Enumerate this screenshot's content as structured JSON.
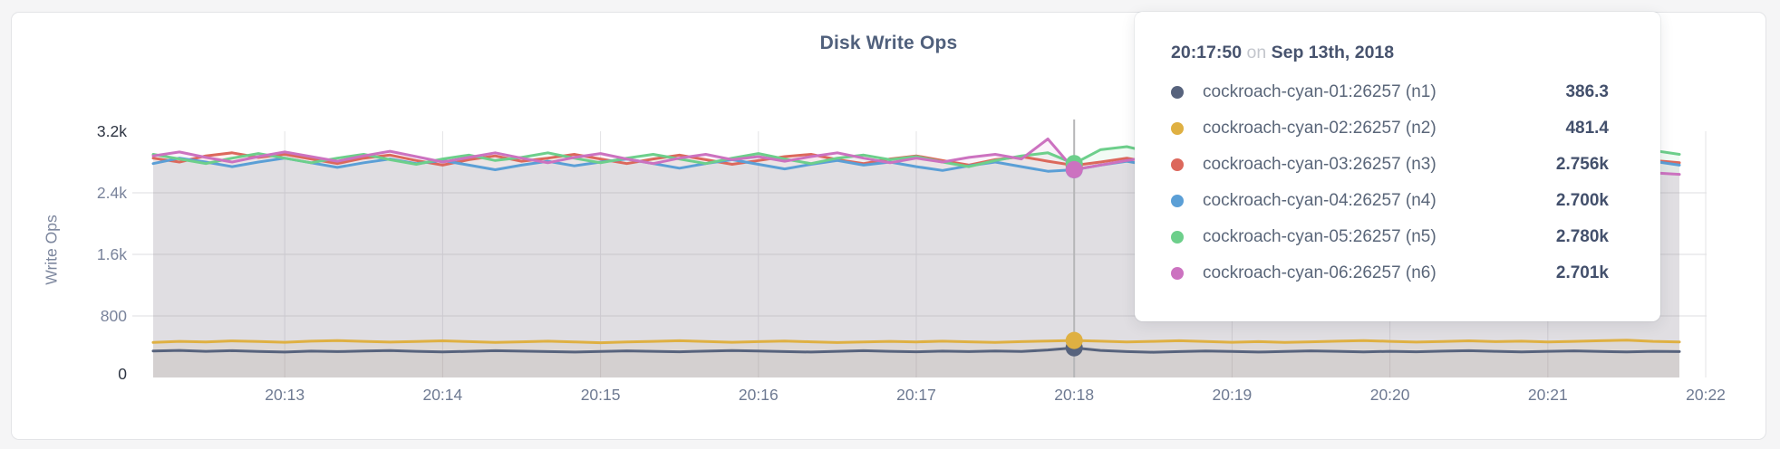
{
  "page": {
    "background": "#f5f5f6",
    "card_background": "#ffffff"
  },
  "chart_data": {
    "type": "area",
    "title": "Disk Write Ops",
    "ylabel": "Write Ops",
    "xlabel": "",
    "ylim": [
      0,
      3200
    ],
    "grid": true,
    "legend_position": "tooltip",
    "x_start_time": "20:12:10",
    "x_step_seconds": 10,
    "x_ticks": [
      {
        "label": "20:13",
        "t": 50
      },
      {
        "label": "20:14",
        "t": 110
      },
      {
        "label": "20:15",
        "t": 170
      },
      {
        "label": "20:16",
        "t": 230
      },
      {
        "label": "20:17",
        "t": 290
      },
      {
        "label": "20:18",
        "t": 350
      },
      {
        "label": "20:19",
        "t": 410
      },
      {
        "label": "20:20",
        "t": 470
      },
      {
        "label": "20:21",
        "t": 530
      },
      {
        "label": "20:22",
        "t": 590
      }
    ],
    "y_ticks": [
      {
        "label": "3.2k",
        "value": 3200,
        "emphasis": true
      },
      {
        "label": "2.4k",
        "value": 2400,
        "emphasis": false
      },
      {
        "label": "1.6k",
        "value": 1600,
        "emphasis": false
      },
      {
        "label": "800",
        "value": 800,
        "emphasis": false
      },
      {
        "label": "0",
        "value": 0,
        "emphasis": true
      }
    ],
    "hover": {
      "index": 35,
      "time": "20:17:50",
      "on_word": "on",
      "date": "Sep 13th, 2018"
    },
    "series": [
      {
        "name": "cockroach-cyan-01:26257 (n1)",
        "color": "#57637d",
        "tooltip_value": "386.3",
        "values": [
          345,
          352,
          340,
          348,
          338,
          330,
          342,
          336,
          344,
          350,
          340,
          332,
          340,
          348,
          342,
          336,
          330,
          338,
          346,
          340,
          334,
          342,
          350,
          344,
          336,
          330,
          340,
          348,
          340,
          334,
          342,
          336,
          344,
          338,
          358,
          386,
          352,
          336,
          328,
          336,
          344,
          338,
          330,
          338,
          346,
          340,
          332,
          340,
          334,
          342,
          348,
          340,
          332,
          340,
          346,
          338,
          332,
          340,
          336
        ]
      },
      {
        "name": "cockroach-cyan-02:26257 (n2)",
        "color": "#dfb042",
        "tooltip_value": "481.4",
        "values": [
          455,
          470,
          462,
          475,
          468,
          458,
          472,
          480,
          470,
          460,
          468,
          476,
          466,
          456,
          464,
          472,
          462,
          452,
          462,
          470,
          478,
          468,
          458,
          466,
          474,
          464,
          454,
          462,
          470,
          462,
          472,
          464,
          456,
          466,
          474,
          481,
          472,
          462,
          470,
          478,
          468,
          458,
          466,
          456,
          464,
          472,
          480,
          470,
          460,
          468,
          476,
          466,
          472,
          462,
          470,
          478,
          486,
          470,
          462
        ]
      },
      {
        "name": "cockroach-cyan-03:26257 (n3)",
        "color": "#dc685c",
        "tooltip_value": "2.756k",
        "values": [
          2850,
          2800,
          2880,
          2920,
          2860,
          2900,
          2840,
          2780,
          2850,
          2890,
          2820,
          2760,
          2830,
          2880,
          2810,
          2850,
          2900,
          2840,
          2780,
          2840,
          2890,
          2830,
          2770,
          2820,
          2870,
          2900,
          2830,
          2780,
          2840,
          2880,
          2820,
          2760,
          2830,
          2870,
          2810,
          2756,
          2800,
          2850,
          2790,
          2830,
          2870,
          2810,
          2760,
          2820,
          2860,
          2800,
          2840,
          2880,
          2820,
          2770,
          2830,
          2870,
          2810,
          2850,
          2790,
          2830,
          2870,
          2820,
          2790
        ]
      },
      {
        "name": "cockroach-cyan-04:26257 (n4)",
        "color": "#5b9fd6",
        "tooltip_value": "2.700k",
        "values": [
          2780,
          2850,
          2800,
          2740,
          2800,
          2850,
          2790,
          2730,
          2790,
          2840,
          2780,
          2820,
          2760,
          2700,
          2760,
          2810,
          2750,
          2800,
          2840,
          2780,
          2720,
          2780,
          2830,
          2770,
          2710,
          2770,
          2820,
          2760,
          2800,
          2740,
          2690,
          2750,
          2800,
          2740,
          2680,
          2700,
          2760,
          2810,
          2750,
          2690,
          2750,
          2800,
          2740,
          2780,
          2720,
          2770,
          2820,
          2760,
          2700,
          2760,
          2810,
          2750,
          2790,
          2730,
          2780,
          2830,
          2770,
          2810,
          2760
        ]
      },
      {
        "name": "cockroach-cyan-05:26257 (n5)",
        "color": "#6dcf8b",
        "tooltip_value": "2.780k",
        "values": [
          2900,
          2840,
          2780,
          2850,
          2910,
          2850,
          2790,
          2850,
          2900,
          2830,
          2770,
          2840,
          2890,
          2820,
          2860,
          2920,
          2850,
          2790,
          2850,
          2900,
          2840,
          2780,
          2850,
          2910,
          2840,
          2780,
          2850,
          2890,
          2830,
          2870,
          2800,
          2740,
          2820,
          2880,
          2920,
          2780,
          2960,
          3000,
          2920,
          2850,
          2900,
          2840,
          2780,
          2850,
          2900,
          2830,
          2870,
          2810,
          2860,
          2900,
          2840,
          2780,
          2840,
          2890,
          2830,
          2870,
          2910,
          2950,
          2900
        ]
      },
      {
        "name": "cockroach-cyan-06:26257 (n6)",
        "color": "#cc72c0",
        "tooltip_value": "2.701k",
        "values": [
          2880,
          2930,
          2860,
          2800,
          2870,
          2930,
          2870,
          2810,
          2880,
          2940,
          2870,
          2800,
          2860,
          2920,
          2850,
          2790,
          2860,
          2910,
          2840,
          2780,
          2850,
          2900,
          2830,
          2870,
          2810,
          2870,
          2920,
          2850,
          2790,
          2850,
          2800,
          2860,
          2900,
          2840,
          3100,
          2701,
          2760,
          2820,
          2870,
          2800,
          2750,
          2810,
          2860,
          2790,
          2830,
          2880,
          2810,
          2760,
          2820,
          2870,
          2800,
          2840,
          2780,
          2830,
          2880,
          2810,
          2700,
          2660,
          2640
        ]
      }
    ],
    "colors": {
      "grid_h": "#dedee0",
      "grid_v": "#e3e3e5",
      "hover_line": "#b6b6b8",
      "tick_dark": "#2d3442",
      "tick_mid": "#79839b",
      "x_tick": "#6e7a92"
    }
  }
}
